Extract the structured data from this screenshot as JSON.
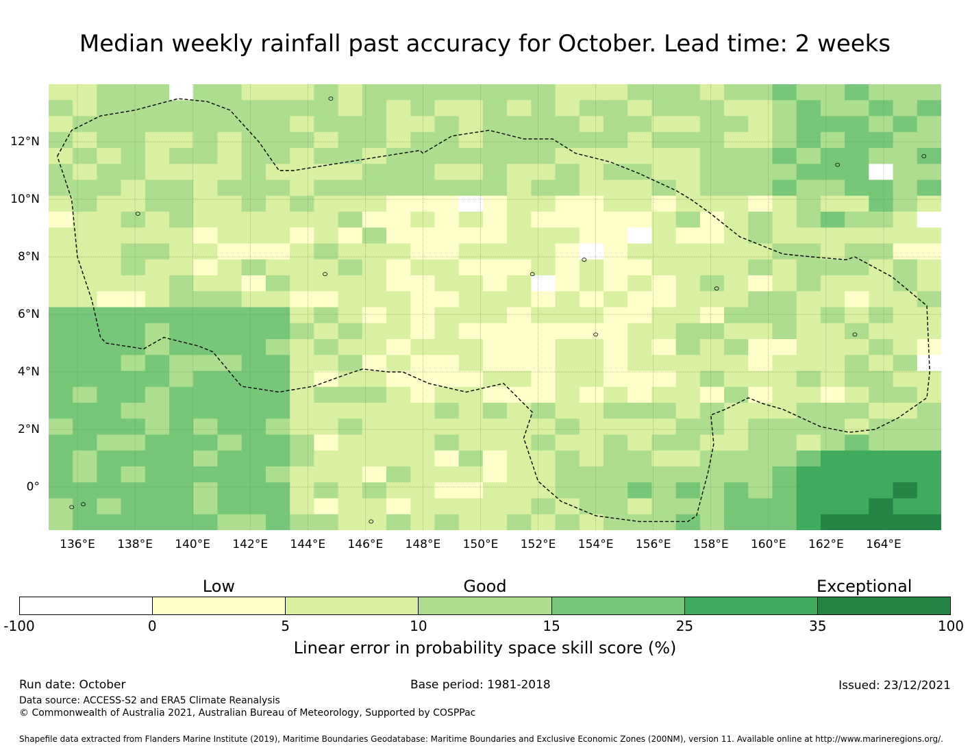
{
  "title": "Median weekly rainfall past accuracy for October. Lead time: 2 weeks",
  "map": {
    "lon_range": [
      135.0,
      166.0
    ],
    "lat_range": [
      -1.5,
      14.0
    ],
    "x_ticks": [
      "136°E",
      "138°E",
      "140°E",
      "142°E",
      "144°E",
      "146°E",
      "148°E",
      "150°E",
      "152°E",
      "154°E",
      "156°E",
      "158°E",
      "160°E",
      "162°E",
      "164°E"
    ],
    "x_tick_lons": [
      136,
      138,
      140,
      142,
      144,
      146,
      148,
      150,
      152,
      154,
      156,
      158,
      160,
      162,
      164
    ],
    "y_ticks": [
      "12°N",
      "10°N",
      "8°N",
      "6°N",
      "4°N",
      "2°N",
      "0°"
    ],
    "y_tick_lats": [
      12,
      10,
      8,
      6,
      4,
      2,
      0
    ],
    "eez_boundary_label": "Exclusive Economic Zone boundary",
    "grid_note": "skill score grid (% LEPS) by region"
  },
  "colorbar": {
    "categories": [
      "Low",
      "Good",
      "Exceptional"
    ],
    "boundaries": [
      "-100",
      "0",
      "5",
      "10",
      "15",
      "25",
      "35",
      "100"
    ],
    "colors": [
      "#ffffff",
      "#ffffcc",
      "#d9f0a3",
      "#addd8e",
      "#78c679",
      "#41ab5d",
      "#238443"
    ],
    "title": "Linear error in probability space skill score (%)"
  },
  "footer": {
    "run_date": "Run date: October",
    "base_period": "Base period: 1981-2018",
    "issued": "Issued: 23/12/2021",
    "data_source": "Data source: ACCESS-S2 and ERA5 Climate Reanalysis",
    "copyright": "© Commonwealth of Australia 2021, Australian Bureau of Meteorology, Supported by COSPPac",
    "shapefile": "Shapefile data extracted from Flanders Marine Institute (2019), Maritime Boundaries Geodatabase: Maritime Boundaries and Exclusive Economic Zones (200NM), version 11. Available online at http://www.marineregions.org/."
  }
}
